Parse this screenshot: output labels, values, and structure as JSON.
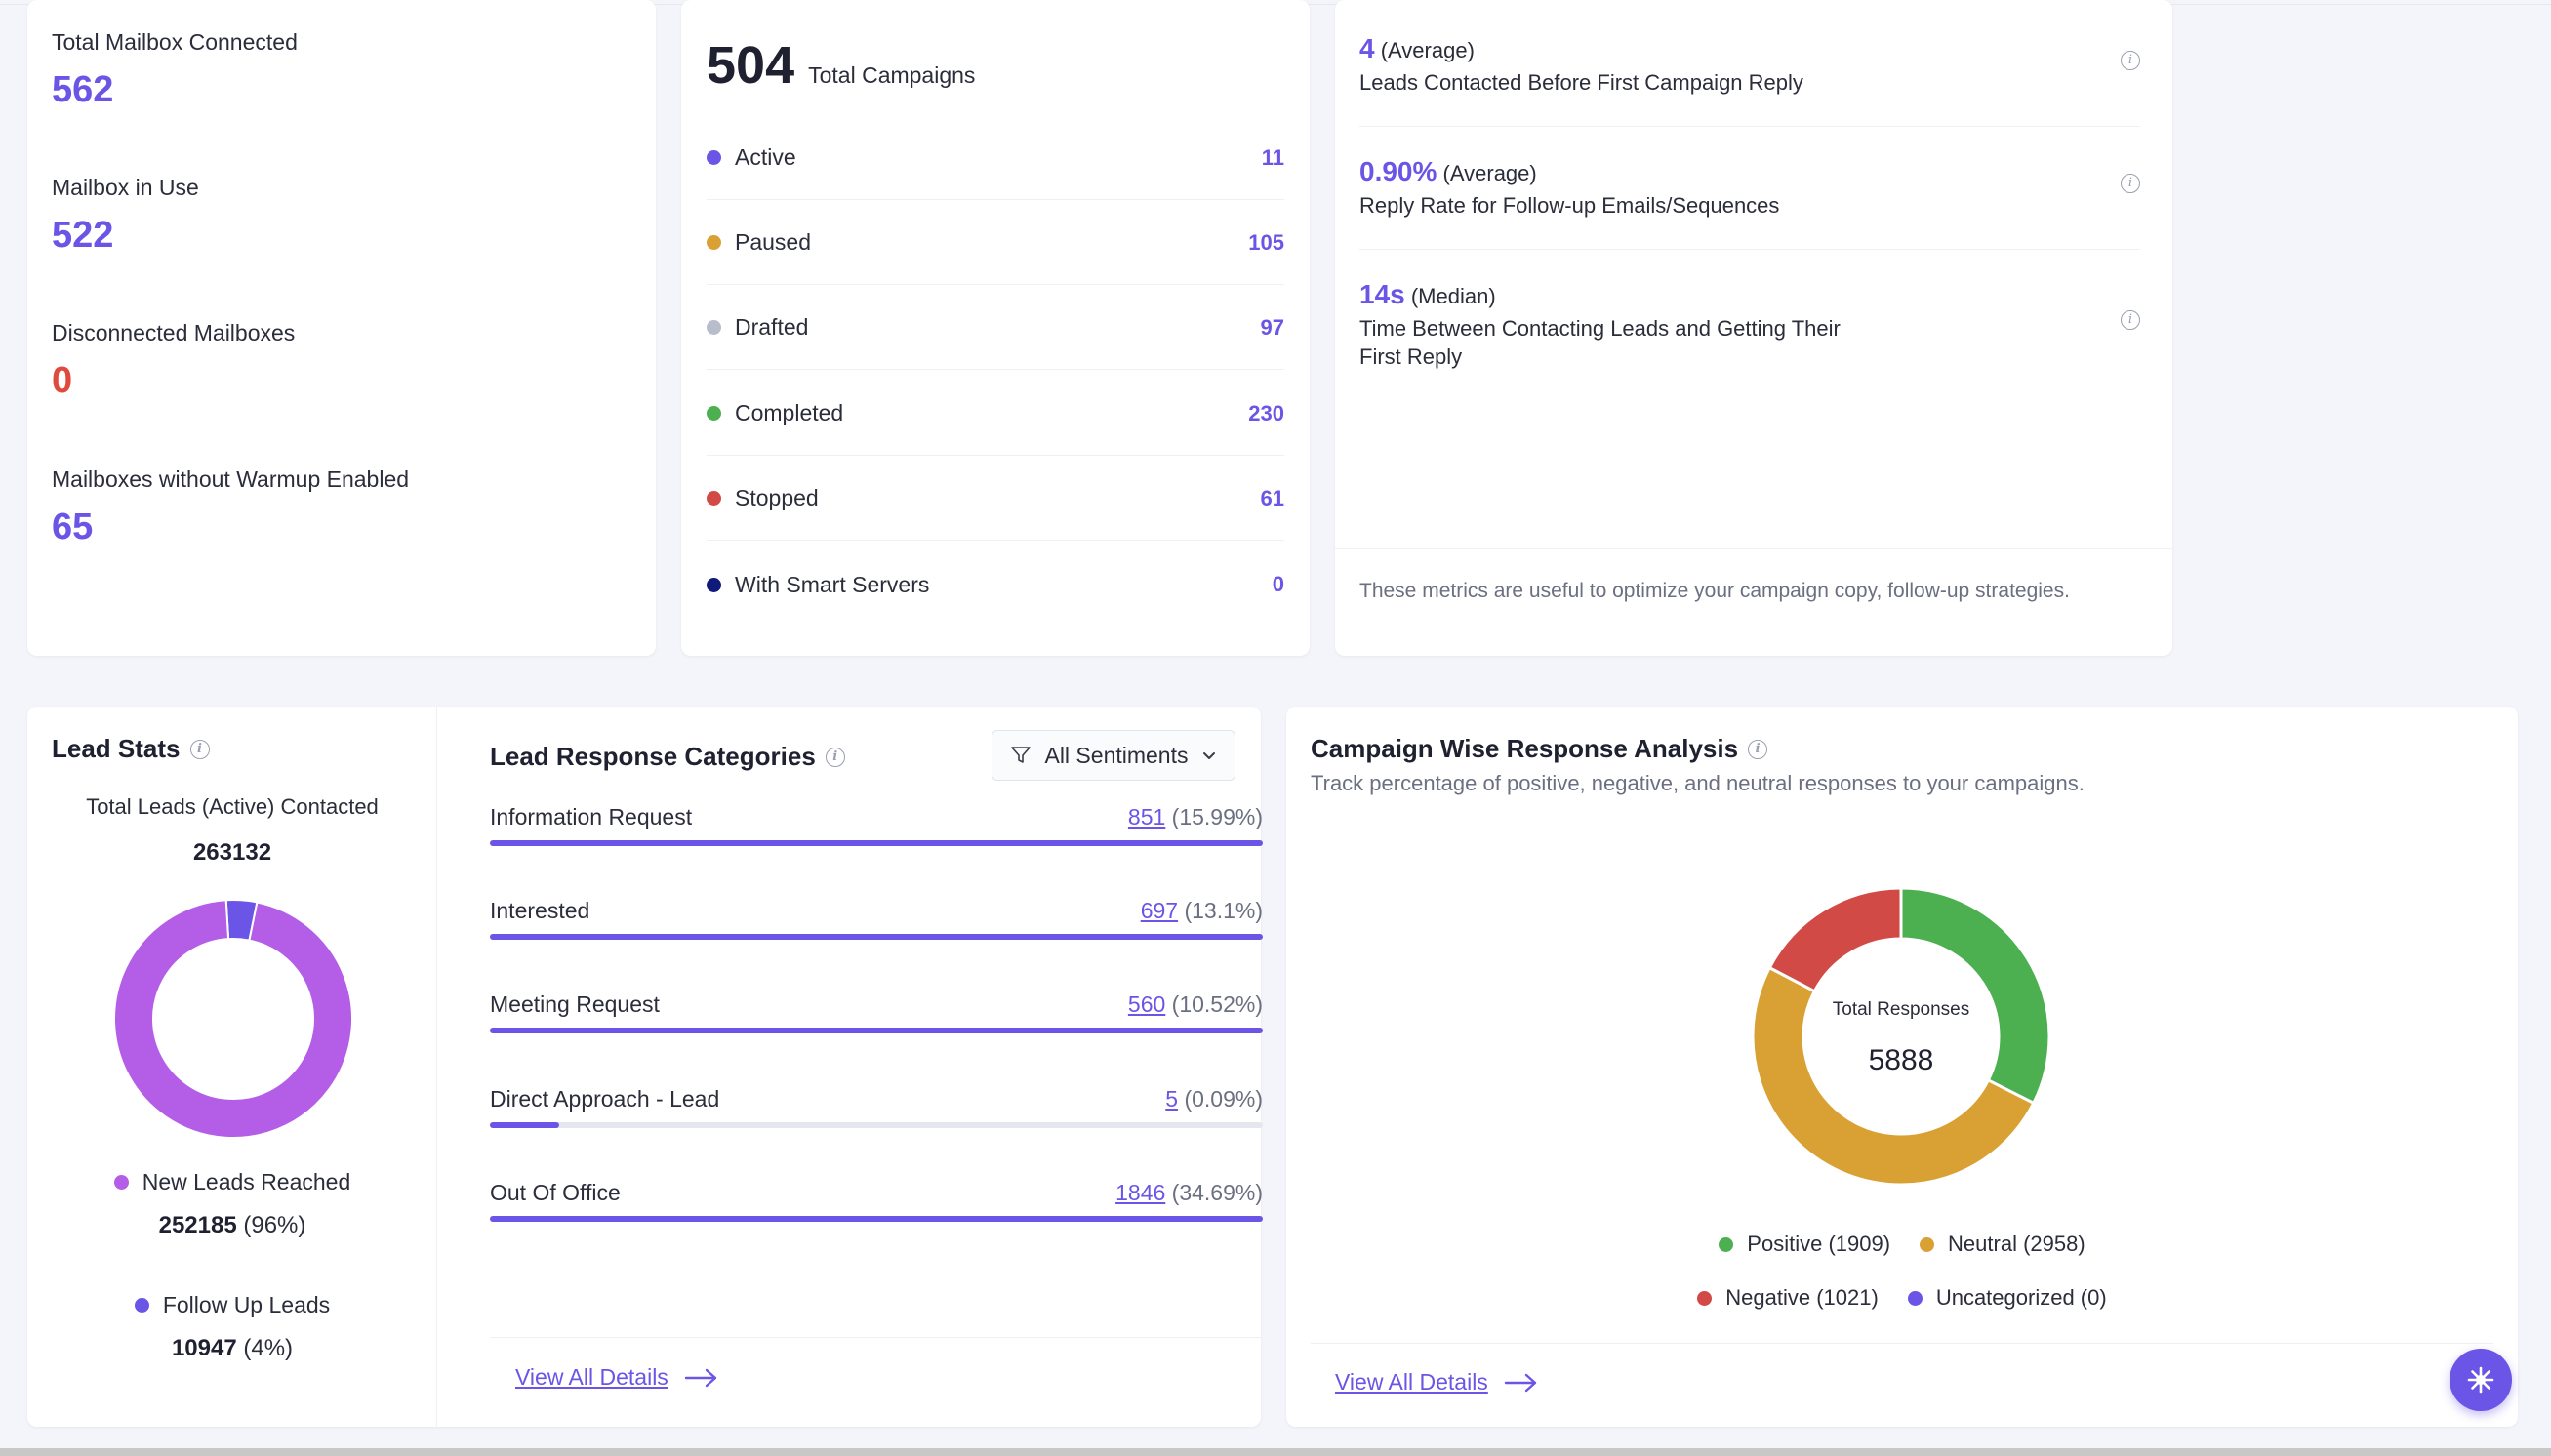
{
  "mailbox": {
    "items": [
      {
        "label": "Total Mailbox Connected",
        "value": "562"
      },
      {
        "label": "Mailbox in Use",
        "value": "522"
      },
      {
        "label": "Disconnected Mailboxes",
        "value": "0"
      },
      {
        "label": "Mailboxes without Warmup Enabled",
        "value": "65"
      }
    ]
  },
  "campaigns": {
    "total": "504",
    "total_label": "Total Campaigns",
    "rows": [
      {
        "label": "Active",
        "count": "11",
        "color": "#6a55e6"
      },
      {
        "label": "Paused",
        "count": "105",
        "color": "#d9a133"
      },
      {
        "label": "Drafted",
        "count": "97",
        "color": "#b8bccb"
      },
      {
        "label": "Completed",
        "count": "230",
        "color": "#4caf50"
      },
      {
        "label": "Stopped",
        "count": "61",
        "color": "#d24a45"
      },
      {
        "label": "With Smart Servers",
        "count": "0",
        "color": "#0f1a7a"
      }
    ]
  },
  "metrics": {
    "items": [
      {
        "value": "4",
        "qualifier": "(Average)",
        "desc": "Leads Contacted Before First Campaign Reply"
      },
      {
        "value": "0.90%",
        "qualifier": "(Average)",
        "desc": "Reply Rate for Follow-up Emails/Sequences"
      },
      {
        "value": "14s",
        "qualifier": "(Median)",
        "desc": "Time Between Contacting Leads and Getting Their First Reply"
      }
    ],
    "footer": "These metrics are useful to optimize your campaign copy, follow-up strategies."
  },
  "lead_stats": {
    "title": "Lead Stats",
    "total_label": "Total Leads (Active) Contacted",
    "total_value": "263132",
    "new_label": "New Leads Reached",
    "new_value": "252185",
    "new_pct": "(96%)",
    "follow_label": "Follow Up Leads",
    "follow_value": "10947",
    "follow_pct": "(4%)",
    "new_color": "#b45ee8",
    "follow_color": "#6a55e6",
    "new_fraction": 0.96,
    "follow_fraction": 0.04
  },
  "response_categories": {
    "title": "Lead Response Categories",
    "filter_label": "All Sentiments",
    "rows": [
      {
        "label": "Information Request",
        "count": "851",
        "pct": "(15.99%)",
        "fill": 1.0
      },
      {
        "label": "Interested",
        "count": "697",
        "pct": "(13.1%)",
        "fill": 1.0
      },
      {
        "label": "Meeting Request",
        "count": "560",
        "pct": "(10.52%)",
        "fill": 1.0
      },
      {
        "label": "Direct Approach - Lead",
        "count": "5",
        "pct": "(0.09%)",
        "fill": 0.09
      },
      {
        "label": "Out Of Office",
        "count": "1846",
        "pct": "(34.69%)",
        "fill": 1.0
      }
    ],
    "view_all": "View All Details"
  },
  "campaign_wise": {
    "title": "Campaign Wise Response Analysis",
    "subtitle": "Track percentage of positive, negative, and neutral responses to your campaigns.",
    "center_label": "Total Responses",
    "center_value": "5888",
    "legend": [
      {
        "label": "Positive (1909)",
        "color": "#4caf50"
      },
      {
        "label": "Neutral (2958)",
        "color": "#d9a133"
      },
      {
        "label": "Negative (1021)",
        "color": "#d24a45"
      },
      {
        "label": "Uncategorized (0)",
        "color": "#6a55e6"
      }
    ],
    "view_all": "View All Details"
  },
  "chart_data": [
    {
      "type": "pie",
      "categories": [
        "New Leads Reached",
        "Follow Up Leads"
      ],
      "values": [
        252185,
        10947
      ]
    },
    {
      "type": "pie",
      "categories": [
        "Positive",
        "Neutral",
        "Negative",
        "Uncategorized"
      ],
      "values": [
        1909,
        2958,
        1021,
        0
      ]
    }
  ]
}
